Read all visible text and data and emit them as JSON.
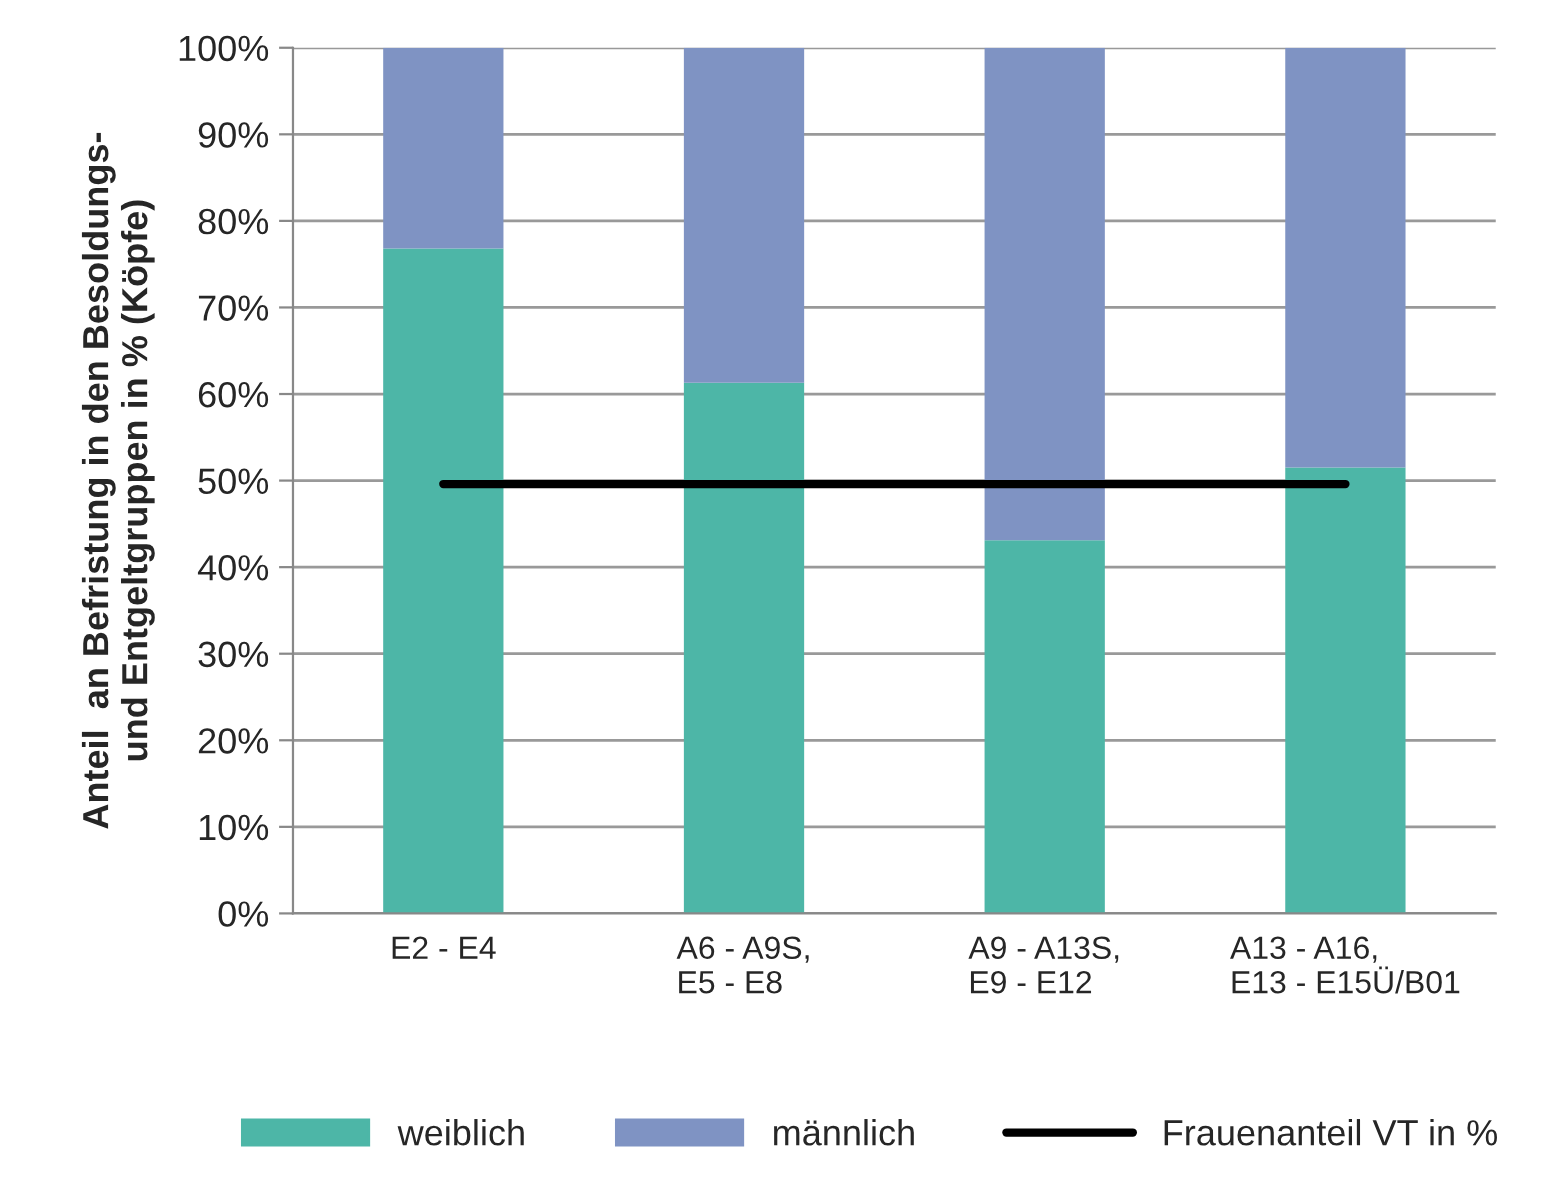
{
  "chart_data": {
    "type": "bar",
    "stacked": true,
    "ylabel": "Anteil  an Befristung in den Besoldungs-\nund Entgeltgruppen in % (Köpfe)",
    "categories": [
      "E2 - E4",
      "A6 - A9S,\nE5 - E8",
      "A9 - A13S,\nE9 - E12",
      "A13 - A16,\nE13 - E15Ü/B01"
    ],
    "series": [
      {
        "name": "weiblich",
        "color": "#4db6a7",
        "values": [
          76.8,
          61.3,
          43.1,
          51.5
        ]
      },
      {
        "name": "männlich",
        "color": "#7f93c3",
        "values": [
          23.2,
          38.7,
          56.9,
          48.5
        ]
      },
      {
        "name": "Frauenanteil VT in %",
        "color": "#000000",
        "type": "line",
        "values": [
          49.6,
          49.6,
          49.6,
          49.6
        ]
      }
    ],
    "ylim": [
      0,
      100
    ],
    "yticks": [
      {
        "value": 0,
        "label": "0%"
      },
      {
        "value": 10,
        "label": "10%"
      },
      {
        "value": 20,
        "label": "20%"
      },
      {
        "value": 30,
        "label": "30%"
      },
      {
        "value": 40,
        "label": "40%"
      },
      {
        "value": 50,
        "label": "50%"
      },
      {
        "value": 60,
        "label": "60%"
      },
      {
        "value": 70,
        "label": "70%"
      },
      {
        "value": 80,
        "label": "80%"
      },
      {
        "value": 90,
        "label": "90%"
      },
      {
        "value": 100,
        "label": "100%"
      }
    ],
    "grid": "y",
    "legend": "bottom"
  }
}
